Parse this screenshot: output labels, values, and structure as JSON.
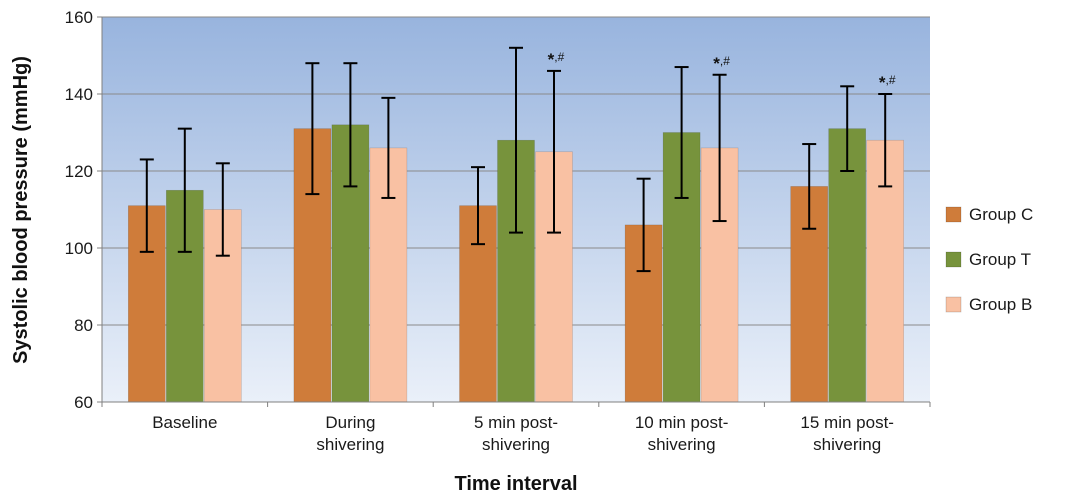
{
  "chart_data": {
    "type": "bar",
    "title": "",
    "xlabel": "Time interval",
    "ylabel": "Systolic blood pressure (mmHg)",
    "ylim": [
      60,
      160
    ],
    "yticks": [
      60,
      80,
      100,
      120,
      140,
      160
    ],
    "grid": true,
    "legend_position": "right",
    "categories": [
      [
        "Baseline"
      ],
      [
        "During",
        "shivering"
      ],
      [
        "5 min post-",
        "shivering"
      ],
      [
        "10 min post-",
        "shivering"
      ],
      [
        "15 min post-",
        "shivering"
      ]
    ],
    "series": [
      {
        "name": "Group C",
        "color": "#CF7C3A",
        "values": [
          111,
          131,
          111,
          106,
          116
        ],
        "errors": [
          12,
          17,
          10,
          12,
          11
        ]
      },
      {
        "name": "Group T",
        "color": "#77933C",
        "values": [
          115,
          132,
          128,
          130,
          131
        ],
        "errors": [
          16,
          16,
          24,
          17,
          11
        ]
      },
      {
        "name": "Group B",
        "color": "#F9C1A3",
        "values": [
          110,
          126,
          125,
          126,
          128
        ],
        "errors": [
          12,
          13,
          21,
          19,
          12
        ]
      }
    ],
    "annotations": [
      {
        "category_index": 2,
        "series_index": 2,
        "symbol": "*",
        "suffix": ",#"
      },
      {
        "category_index": 3,
        "series_index": 2,
        "symbol": "*",
        "suffix": ",#"
      },
      {
        "category_index": 4,
        "series_index": 2,
        "symbol": "*",
        "suffix": ",#"
      }
    ]
  }
}
